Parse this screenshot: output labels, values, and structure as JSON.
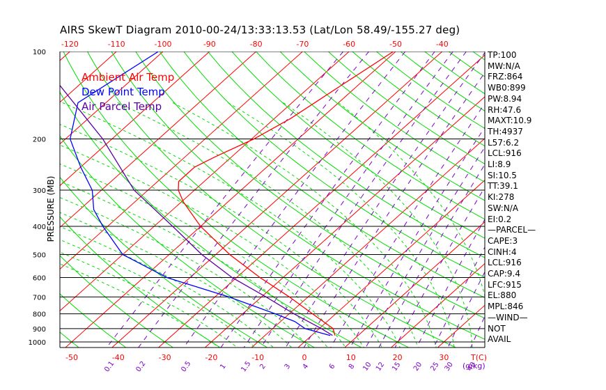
{
  "chart_data": {
    "type": "skewt",
    "title": "AIRS SkewT Diagram 2010-00-24/13:33:13.53 (Lat/Lon 58.49/-155.27 deg)",
    "ylabel": "PRESSURE (MB)",
    "xlabel": "T(C)",
    "mixing_ratio_label": "(g/kg)",
    "pressure_ticks": [
      "100",
      "200",
      "300",
      "400",
      "500",
      "600",
      "700",
      "800",
      "900",
      "1000"
    ],
    "pressure_lines": [
      100,
      200,
      300,
      400,
      500,
      600,
      700,
      800,
      900,
      1000
    ],
    "ylim": [
      1050,
      100
    ],
    "top_temp_ticks": [
      "-120",
      "-110",
      "-100",
      "-90",
      "-80",
      "-70",
      "-60",
      "-50",
      "-40"
    ],
    "bottom_temp_ticks": [
      "-50",
      "-40",
      "-30",
      "-20",
      "-10",
      "0",
      "10",
      "20",
      "30"
    ],
    "mixing_ratio_ticks": [
      "0.1",
      "0.2",
      "0.5",
      "1",
      "1.5",
      "2",
      "3",
      "4",
      "6",
      "8",
      "10",
      "12",
      "15",
      "20",
      "25",
      "30",
      "40"
    ],
    "xlim_at_1000mb": [
      -52,
      42
    ],
    "legend": [
      {
        "name": "Ambient Air Temp",
        "color": "#ff0000"
      },
      {
        "name": "Dew Point Temp",
        "color": "#0000ff"
      },
      {
        "name": "Air Parcel Temp",
        "color": "#5a00a0"
      }
    ],
    "colors": {
      "isotherms": "#ff0000",
      "dry_adiabats": "#00dd00",
      "moist_adiabats": "#00dd00",
      "mixing_ratio_lines": "#7a00c8",
      "isobars": "#000000",
      "temperature": "#ff0000",
      "dewpoint": "#0000ff",
      "parcel": "#5a00a0"
    },
    "series": [
      {
        "name": "Ambient Air Temp",
        "pressure": [
          100,
          130,
          170,
          200,
          230,
          250,
          280,
          300,
          330,
          400,
          500,
          600,
          700,
          800,
          900,
          950
        ],
        "values": [
          -50.5,
          -53.5,
          -56.5,
          -59.5,
          -63.5,
          -65.5,
          -65.5,
          -63.5,
          -59.5,
          -50,
          -37,
          -25,
          -14,
          -5,
          3,
          5
        ]
      },
      {
        "name": "Dew Point Temp",
        "pressure": [
          100,
          150,
          200,
          250,
          300,
          350,
          400,
          500,
          600,
          700,
          800,
          850,
          900,
          950
        ],
        "values": [
          -101,
          -106,
          -99,
          -90,
          -82,
          -77,
          -71,
          -60,
          -45,
          -27,
          -13,
          -7,
          -3,
          4
        ]
      },
      {
        "name": "Air Parcel Temp",
        "pressure": [
          100,
          200,
          300,
          400,
          500,
          600,
          700,
          800,
          900,
          950
        ],
        "values": [
          -128,
          -92,
          -73,
          -56,
          -43,
          -31,
          -19,
          -9,
          0.5,
          4.5
        ]
      }
    ]
  },
  "stats": [
    "TP:100",
    "MW:N/A",
    "FRZ:864",
    "WB0:899",
    "PW:8.94",
    "RH:47.6",
    "MAXT:10.9",
    "TH:4937",
    "L57:6.2",
    "LCL:916",
    "LI:8.9",
    "SI:10.5",
    "TT:39.1",
    "KI:278",
    "SW:N/A",
    "EI:0.2",
    "—PARCEL—",
    "CAPE:3",
    "CINH:4",
    "LCL:916",
    "CAP:9.4",
    "LFC:915",
    "EL:880",
    "MPL:846",
    "—WIND—",
    "NOT",
    "AVAIL"
  ]
}
